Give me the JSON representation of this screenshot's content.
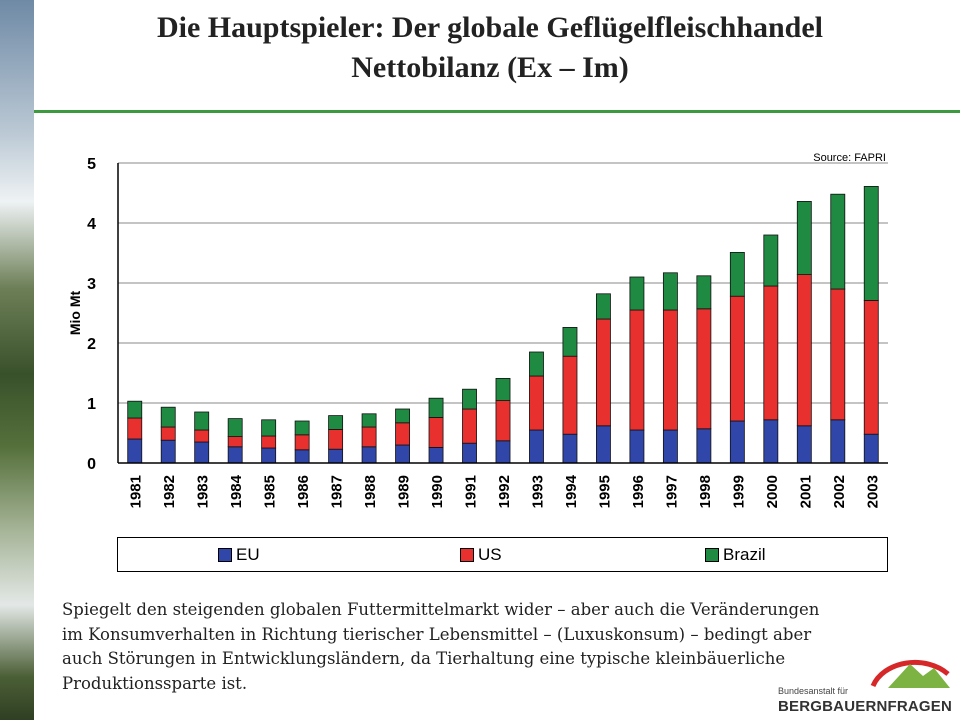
{
  "slide": {
    "title_line1": "Die Hauptspieler: Der globale Geflügelfleischhandel",
    "title_line2": "Nettobilanz (Ex – Im)",
    "caption": "Spiegelt den steigenden globalen Futtermittelmarkt wider – aber auch die Veränderungen im Konsumverhalten in Richtung tierischer Lebensmittel – (Luxuskonsum) – bedingt aber auch Störungen in Entwicklungsländern, da Tierhaltung eine typische kleinbäuerliche Produktionssparte ist.",
    "accent_color": "#3e9a3e"
  },
  "logo": {
    "small_text": "Bundesanstalt für",
    "big_text": "BERGBAUERNFRAGEN",
    "arc_color": "#d62828",
    "mountain_color": "#7cb342"
  },
  "chart_data": {
    "type": "bar",
    "stacked": true,
    "source": "Source: FAPRI",
    "ylabel": "Mio Mt",
    "xlabel": "",
    "ylim": [
      0,
      5
    ],
    "yticks": [
      0,
      1,
      2,
      3,
      4,
      5
    ],
    "grid": true,
    "legend": "bottom",
    "categories": [
      "1981",
      "1982",
      "1983",
      "1984",
      "1985",
      "1986",
      "1987",
      "1988",
      "1989",
      "1990",
      "1991",
      "1992",
      "1993",
      "1994",
      "1995",
      "1996",
      "1997",
      "1998",
      "1999",
      "2000",
      "2001",
      "2002",
      "2003"
    ],
    "series": [
      {
        "name": "EU",
        "color": "#3046a8",
        "values": [
          0.4,
          0.38,
          0.35,
          0.27,
          0.25,
          0.22,
          0.23,
          0.27,
          0.3,
          0.26,
          0.33,
          0.37,
          0.55,
          0.48,
          0.62,
          0.55,
          0.55,
          0.57,
          0.7,
          0.72,
          0.62,
          0.72,
          0.48
        ]
      },
      {
        "name": "US",
        "color": "#e8302e",
        "values": [
          0.35,
          0.22,
          0.2,
          0.17,
          0.2,
          0.25,
          0.33,
          0.33,
          0.37,
          0.5,
          0.57,
          0.67,
          0.9,
          1.3,
          1.78,
          2.0,
          2.0,
          2.0,
          2.08,
          2.23,
          2.52,
          2.18,
          2.23
        ]
      },
      {
        "name": "Brazil",
        "color": "#1f8a42",
        "values": [
          0.28,
          0.33,
          0.3,
          0.3,
          0.27,
          0.23,
          0.23,
          0.22,
          0.23,
          0.32,
          0.33,
          0.37,
          0.4,
          0.48,
          0.42,
          0.55,
          0.62,
          0.55,
          0.73,
          0.85,
          1.22,
          1.58,
          1.9
        ]
      }
    ]
  }
}
